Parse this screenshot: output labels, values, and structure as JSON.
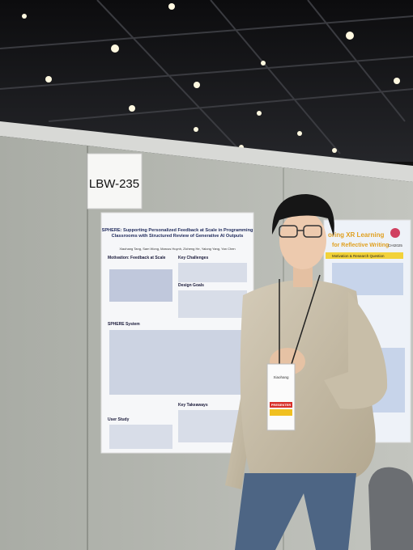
{
  "sign": {
    "label": "LBW-235"
  },
  "left_poster": {
    "title": "SPHERE: Supporting Personalized Feedback at Scale in Programming Classrooms with Structured Review of Generative AI Outputs",
    "title_line_1": "SPHERE: Supporting Personalized Feedback at Scale in Programming",
    "title_line_2": "Classrooms with Structured Review of Generative AI Outputs",
    "authors": "Xiaohang Tang, Sam Wong, Marcus Huynh, Zicheng He, Yalong Yang, Yan Chen",
    "sections": [
      "Motivation: Feedback at Scale",
      "Key Challenges",
      "Design Goals",
      "SPHERE System",
      "User Study",
      "Key Takeaways"
    ]
  },
  "right_poster": {
    "title_line_1": "oring XR Learning",
    "title_line_2": "for Reflective Writing",
    "venue": "CHI2025",
    "section": "Motivation & Research Question"
  },
  "badge": {
    "name": "Xiaohang",
    "role": "PRESENTER"
  }
}
